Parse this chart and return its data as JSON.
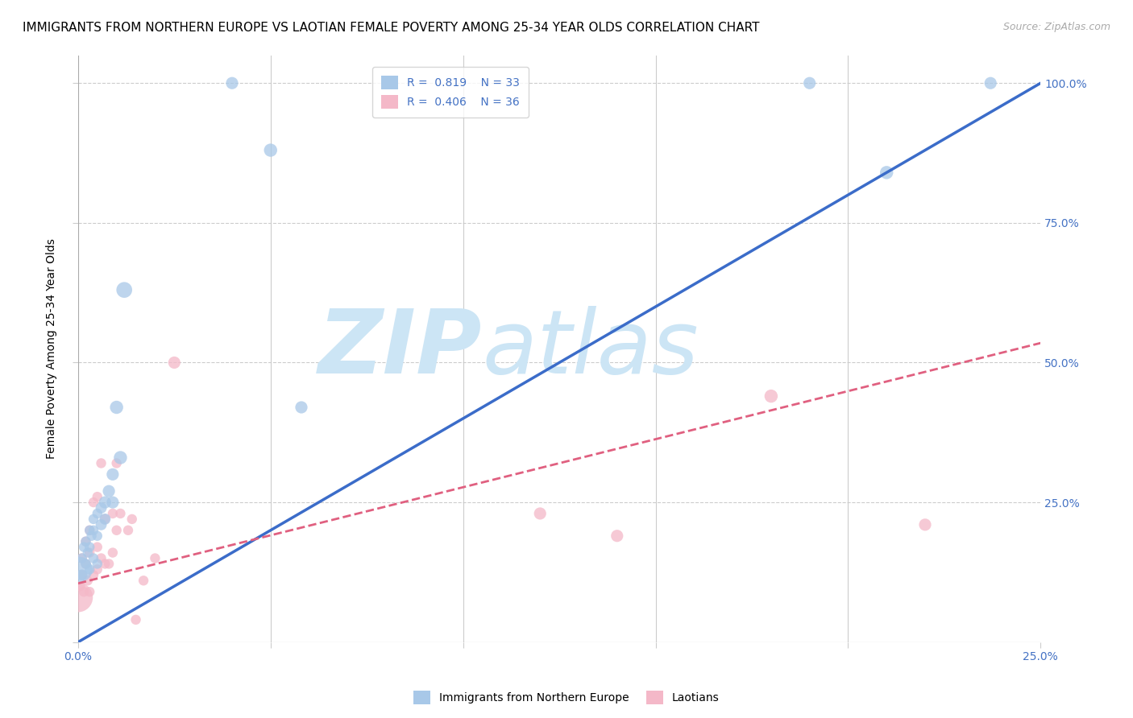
{
  "title": "IMMIGRANTS FROM NORTHERN EUROPE VS LAOTIAN FEMALE POVERTY AMONG 25-34 YEAR OLDS CORRELATION CHART",
  "source": "Source: ZipAtlas.com",
  "ylabel_left": "Female Poverty Among 25-34 Year Olds",
  "blue_label": "Immigrants from Northern Europe",
  "pink_label": "Laotians",
  "blue_R": 0.819,
  "blue_N": 33,
  "pink_R": 0.406,
  "pink_N": 36,
  "blue_color": "#a8c8e8",
  "pink_color": "#f4b8c8",
  "blue_line_color": "#3b6cc9",
  "pink_line_color": "#e06080",
  "xmin": 0.0,
  "xmax": 0.25,
  "ymin": 0.0,
  "ymax": 1.05,
  "watermark_zip": "ZIP",
  "watermark_atlas": "atlas",
  "watermark_color": "#cce5f5",
  "blue_scatter_x": [
    0.0005,
    0.001,
    0.001,
    0.0015,
    0.002,
    0.002,
    0.0025,
    0.003,
    0.003,
    0.003,
    0.0035,
    0.004,
    0.004,
    0.004,
    0.005,
    0.005,
    0.005,
    0.006,
    0.006,
    0.007,
    0.007,
    0.008,
    0.009,
    0.009,
    0.01,
    0.011,
    0.012,
    0.04,
    0.05,
    0.058,
    0.19,
    0.21,
    0.237
  ],
  "blue_scatter_y": [
    0.13,
    0.12,
    0.15,
    0.17,
    0.14,
    0.18,
    0.16,
    0.13,
    0.17,
    0.2,
    0.19,
    0.15,
    0.2,
    0.22,
    0.14,
    0.19,
    0.23,
    0.21,
    0.24,
    0.22,
    0.25,
    0.27,
    0.25,
    0.3,
    0.42,
    0.33,
    0.63,
    1.0,
    0.88,
    0.42,
    1.0,
    0.84,
    1.0
  ],
  "blue_scatter_size": [
    500,
    100,
    80,
    80,
    80,
    80,
    80,
    80,
    80,
    80,
    80,
    80,
    80,
    80,
    80,
    80,
    80,
    100,
    100,
    100,
    120,
    120,
    120,
    120,
    140,
    140,
    200,
    120,
    140,
    120,
    120,
    140,
    120
  ],
  "pink_scatter_x": [
    0.0,
    0.0005,
    0.001,
    0.001,
    0.0015,
    0.002,
    0.002,
    0.0025,
    0.003,
    0.003,
    0.003,
    0.004,
    0.004,
    0.005,
    0.005,
    0.005,
    0.006,
    0.006,
    0.007,
    0.007,
    0.008,
    0.009,
    0.009,
    0.01,
    0.01,
    0.011,
    0.013,
    0.014,
    0.015,
    0.017,
    0.02,
    0.025,
    0.12,
    0.14,
    0.18,
    0.22
  ],
  "pink_scatter_y": [
    0.08,
    0.1,
    0.12,
    0.15,
    0.09,
    0.14,
    0.18,
    0.11,
    0.09,
    0.16,
    0.2,
    0.12,
    0.25,
    0.13,
    0.17,
    0.26,
    0.15,
    0.32,
    0.14,
    0.22,
    0.14,
    0.16,
    0.23,
    0.2,
    0.32,
    0.23,
    0.2,
    0.22,
    0.04,
    0.11,
    0.15,
    0.5,
    0.23,
    0.19,
    0.44,
    0.21
  ],
  "pink_scatter_size": [
    700,
    80,
    80,
    80,
    80,
    80,
    80,
    80,
    80,
    80,
    80,
    80,
    80,
    80,
    80,
    80,
    80,
    80,
    80,
    80,
    80,
    80,
    80,
    80,
    80,
    80,
    80,
    80,
    80,
    80,
    80,
    120,
    120,
    120,
    140,
    120
  ],
  "title_fontsize": 11,
  "source_fontsize": 9,
  "axis_label_fontsize": 10,
  "tick_fontsize": 10,
  "legend_fontsize": 10,
  "tick_color": "#4472c4",
  "blue_line_intercept": 0.0,
  "blue_line_slope": 4.0,
  "pink_line_intercept": 0.105,
  "pink_line_slope": 1.72
}
